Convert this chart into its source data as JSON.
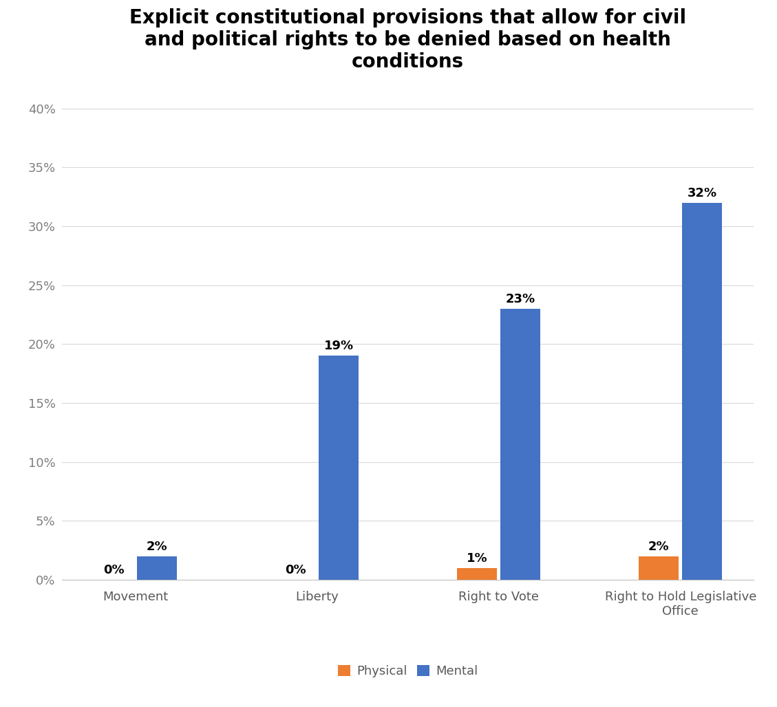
{
  "title": "Explicit constitutional provisions that allow for civil\nand political rights to be denied based on health\nconditions",
  "categories": [
    "Movement",
    "Liberty",
    "Right to Vote",
    "Right to Hold Legislative\nOffice"
  ],
  "physical_values": [
    0,
    0,
    1,
    2
  ],
  "mental_values": [
    2,
    19,
    23,
    32
  ],
  "physical_color": "#ED7D31",
  "mental_color": "#4472C4",
  "ylim": [
    0,
    42
  ],
  "yticks": [
    0,
    5,
    10,
    15,
    20,
    25,
    30,
    35,
    40
  ],
  "ytick_labels": [
    "0%",
    "5%",
    "10%",
    "15%",
    "20%",
    "25%",
    "30%",
    "35%",
    "40%"
  ],
  "bar_width": 0.22,
  "legend_labels": [
    "Physical",
    "Mental"
  ],
  "background_color": "#FFFFFF",
  "grid_color": "#D9D9D9",
  "title_fontsize": 20,
  "tick_fontsize": 13,
  "xtick_fontsize": 13,
  "label_fontsize": 13,
  "annotation_fontsize": 13,
  "tick_color": "#7F7F7F",
  "xtick_color": "#595959"
}
